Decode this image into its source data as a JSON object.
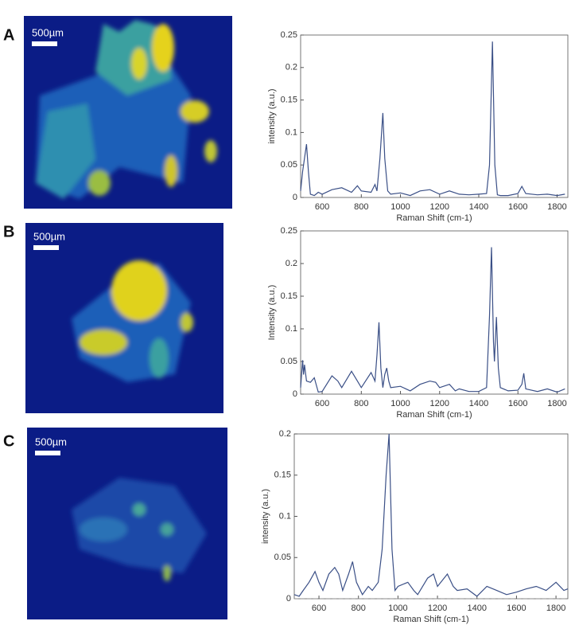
{
  "maps": [
    {
      "label": "A",
      "scale_bar": "500µm"
    },
    {
      "label": "B",
      "scale_bar": "500µm"
    },
    {
      "label": "C",
      "scale_bar": "500µm"
    }
  ],
  "chart_data": [
    {
      "type": "line",
      "xlabel": "Raman Shift (cm-1)",
      "ylabel": "intensity (a.u.)",
      "color": "#3a4f86",
      "x": [
        490,
        500,
        520,
        530,
        540,
        560,
        580,
        600,
        650,
        700,
        750,
        780,
        800,
        850,
        870,
        880,
        895,
        910,
        920,
        935,
        950,
        1000,
        1050,
        1100,
        1150,
        1200,
        1250,
        1300,
        1350,
        1400,
        1440,
        1455,
        1470,
        1482,
        1495,
        1510,
        1550,
        1600,
        1620,
        1640,
        1700,
        1750,
        1800,
        1840
      ],
      "values": [
        0.01,
        0.04,
        0.082,
        0.04,
        0.005,
        0.003,
        0.008,
        0.005,
        0.012,
        0.015,
        0.008,
        0.018,
        0.01,
        0.008,
        0.02,
        0.01,
        0.06,
        0.13,
        0.06,
        0.01,
        0.005,
        0.007,
        0.003,
        0.01,
        0.012,
        0.005,
        0.01,
        0.005,
        0.004,
        0.005,
        0.006,
        0.05,
        0.24,
        0.05,
        0.004,
        0.003,
        0.003,
        0.006,
        0.017,
        0.006,
        0.004,
        0.005,
        0.003,
        0.005
      ],
      "xlim": [
        490,
        1855
      ],
      "ylim": [
        0,
        0.25
      ],
      "xticks": [
        600,
        800,
        1000,
        1200,
        1400,
        1600,
        1800
      ],
      "yticks": [
        0,
        0.05,
        0.1,
        0.15,
        0.2,
        0.25
      ]
    },
    {
      "type": "line",
      "xlabel": "Raman Shift (cm-1)",
      "ylabel": "Intensity (a.u.)",
      "color": "#3a4f86",
      "x": [
        490,
        495,
        500,
        505,
        510,
        520,
        540,
        560,
        580,
        600,
        650,
        680,
        700,
        750,
        780,
        800,
        850,
        870,
        880,
        890,
        900,
        910,
        920,
        930,
        940,
        950,
        1000,
        1050,
        1100,
        1150,
        1180,
        1200,
        1250,
        1280,
        1300,
        1350,
        1400,
        1440,
        1455,
        1465,
        1475,
        1480,
        1490,
        1500,
        1510,
        1550,
        1600,
        1620,
        1630,
        1640,
        1700,
        1750,
        1800,
        1840
      ],
      "values": [
        0.01,
        0.03,
        0.052,
        0.03,
        0.045,
        0.02,
        0.018,
        0.025,
        0.003,
        0.004,
        0.028,
        0.02,
        0.01,
        0.035,
        0.02,
        0.01,
        0.033,
        0.02,
        0.06,
        0.11,
        0.04,
        0.01,
        0.03,
        0.04,
        0.02,
        0.01,
        0.012,
        0.005,
        0.015,
        0.02,
        0.018,
        0.01,
        0.015,
        0.005,
        0.008,
        0.004,
        0.004,
        0.01,
        0.12,
        0.225,
        0.08,
        0.05,
        0.118,
        0.04,
        0.01,
        0.005,
        0.006,
        0.015,
        0.032,
        0.008,
        0.004,
        0.008,
        0.003,
        0.008
      ],
      "xlim": [
        490,
        1855
      ],
      "ylim": [
        0,
        0.25
      ],
      "xticks": [
        600,
        800,
        1000,
        1200,
        1400,
        1600,
        1800
      ],
      "yticks": [
        0,
        0.05,
        0.1,
        0.15,
        0.2,
        0.25
      ]
    },
    {
      "type": "line",
      "xlabel": "Raman Shift (cm-1)",
      "ylabel": "intensity (a.u.)",
      "color": "#3a4f86",
      "zero_line": true,
      "x": [
        475,
        500,
        520,
        550,
        580,
        600,
        620,
        650,
        680,
        700,
        720,
        750,
        770,
        790,
        820,
        850,
        870,
        900,
        920,
        940,
        955,
        970,
        985,
        1000,
        1050,
        1080,
        1100,
        1150,
        1180,
        1200,
        1250,
        1280,
        1300,
        1350,
        1400,
        1450,
        1500,
        1550,
        1600,
        1650,
        1700,
        1750,
        1800,
        1840,
        1860
      ],
      "values": [
        0.005,
        0.003,
        0.01,
        0.02,
        0.033,
        0.02,
        0.01,
        0.03,
        0.038,
        0.03,
        0.01,
        0.03,
        0.045,
        0.02,
        0.005,
        0.015,
        0.01,
        0.02,
        0.06,
        0.15,
        0.2,
        0.06,
        0.01,
        0.015,
        0.02,
        0.01,
        0.005,
        0.025,
        0.03,
        0.015,
        0.03,
        0.015,
        0.01,
        0.012,
        0.003,
        0.015,
        0.01,
        0.005,
        0.008,
        0.012,
        0.015,
        0.01,
        0.02,
        0.01,
        0.012
      ],
      "xlim": [
        475,
        1860
      ],
      "ylim": [
        0,
        0.2
      ],
      "xticks": [
        600,
        800,
        1000,
        1200,
        1400,
        1600,
        1800
      ],
      "yticks": [
        0,
        0.05,
        0.1,
        0.15,
        0.2
      ]
    }
  ]
}
